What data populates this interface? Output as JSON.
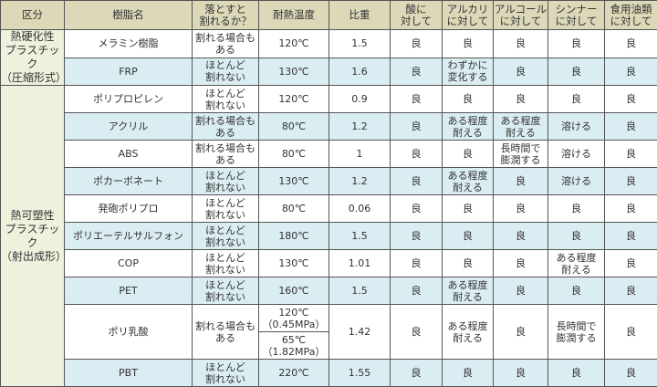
{
  "headers": [
    "区分",
    "樹脂名",
    "落とすと\n割れるか？",
    "耐熱温度",
    "比重",
    "酸に\n対して",
    "アルカリ\nに対して",
    "アルコール\nに対して",
    "シンナー\nに対して",
    "食用油類\nに対して"
  ],
  "categories": [
    "熱硬化性\nプラスチック\n（圧縮形式）",
    "熱可塑性\nプラスチック\n（射出成形）"
  ],
  "rows": [
    [
      "メラミン樹脂",
      "割れる場合も\nある",
      "120℃",
      "1.5",
      "良",
      "良",
      "良",
      "良",
      "良"
    ],
    [
      "FRP",
      "ほとんど\n割れない",
      "130℃",
      "1.6",
      "良",
      "わずかに\n変化する",
      "良",
      "良",
      "良"
    ],
    [
      "ポリプロピレン",
      "ほとんど\n割れない",
      "120℃",
      "0.9",
      "良",
      "良",
      "良",
      "良",
      "良"
    ],
    [
      "アクリル",
      "割れる場合も\nある",
      "80℃",
      "1.2",
      "良",
      "ある程度\n耐える",
      "ある程度\n耐える",
      "溶ける",
      "良"
    ],
    [
      "ABS",
      "割れる場合も\nある",
      "80℃",
      "1",
      "良",
      "良",
      "長時間で\n膨潤する",
      "溶ける",
      "良"
    ],
    [
      "ポカーボネート",
      "ほとんど\n割れない",
      "130℃",
      "1.2",
      "良",
      "ある程度\n耐える",
      "良",
      "溶ける",
      "良"
    ],
    [
      "発砲ポリプロ",
      "ほとんど\n割れない",
      "80℃",
      "0.06",
      "良",
      "良",
      "良",
      "良",
      "良"
    ],
    [
      "ポリエーテルサルフォン",
      "ほとんど\n割れない",
      "180℃",
      "1.5",
      "良",
      "良",
      "良",
      "良",
      "良"
    ],
    [
      "COP",
      "ほとんど\n割れない",
      "130℃",
      "1.01",
      "良",
      "良",
      "良",
      "ある程度\n耐える",
      "良"
    ],
    [
      "PET",
      "ほとんど\n割れない",
      "160℃",
      "1.5",
      "良",
      "ある程度\n耐える",
      "良",
      "良",
      "良"
    ],
    [
      "ポリ乳酸",
      "割れる場合も\nある",
      "120℃\n（0.45MPa）",
      "1.42",
      "良",
      "ある程度\n耐える",
      "良",
      "長時間で\n膨潤する",
      "良"
    ],
    [
      "PBT",
      "ほとんど\n割れない",
      "220℃",
      "1.55",
      "良",
      "良",
      "良",
      "良",
      "良"
    ]
  ],
  "pla_extra_temp": "65℃\n（1.82MPa）",
  "colors": {
    "header": "#dcd8b8",
    "category": "#eef2dc",
    "row_alt": "#daedf2",
    "border": "#555555"
  }
}
